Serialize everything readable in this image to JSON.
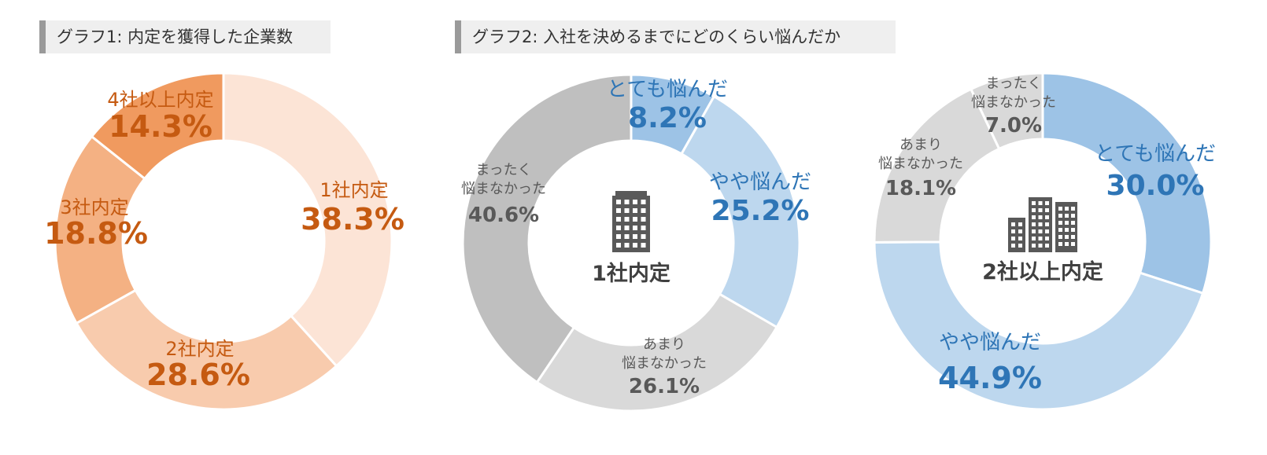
{
  "titles": {
    "graph1": "グラフ1: 内定を獲得した企業数",
    "graph2": "グラフ2: 入社を決めるまでにどのくらい悩んだか"
  },
  "chart_data": [
    {
      "type": "pie",
      "title": "グラフ1: 内定を獲得した企業数",
      "center_label": "",
      "series": [
        {
          "name": "1社内定",
          "value": 38.3,
          "label": "38.3%",
          "color": "#fce4d6"
        },
        {
          "name": "2社内定",
          "value": 28.6,
          "label": "28.6%",
          "color": "#f8cbad"
        },
        {
          "name": "3社内定",
          "value": 18.8,
          "label": "18.8%",
          "color": "#f4b183"
        },
        {
          "name": "4社以上内定",
          "value": 14.3,
          "label": "14.3%",
          "color": "#f09a5f"
        }
      ],
      "label_color": "#c55a11"
    },
    {
      "type": "pie",
      "title": "グラフ2: 入社を決めるまでにどのくらい悩んだか",
      "center_label": "1社内定",
      "center_icon": "building-icon",
      "series": [
        {
          "name": "とても悩んだ",
          "value": 8.2,
          "label": "8.2%",
          "color": "#9dc3e6",
          "label_color": "#2e75b6"
        },
        {
          "name": "やや悩んだ",
          "value": 25.2,
          "label": "25.2%",
          "color": "#bdd7ee",
          "label_color": "#2e75b6"
        },
        {
          "name": "あまり悩まなかった",
          "name_lines": [
            "あまり",
            "悩まなかった"
          ],
          "value": 26.1,
          "label": "26.1%",
          "color": "#d9d9d9",
          "label_color": "#595959"
        },
        {
          "name": "まったく悩まなかった",
          "name_lines": [
            "まったく",
            "悩まなかった"
          ],
          "value": 40.6,
          "label": "40.6%",
          "color": "#bfbfbf",
          "label_color": "#595959"
        }
      ]
    },
    {
      "type": "pie",
      "title": "",
      "center_label": "2社以上内定",
      "center_icon": "buildings-icon",
      "series": [
        {
          "name": "とても悩んだ",
          "value": 30.0,
          "label": "30.0%",
          "color": "#9dc3e6",
          "label_color": "#2e75b6"
        },
        {
          "name": "やや悩んだ",
          "value": 44.9,
          "label": "44.9%",
          "color": "#bdd7ee",
          "label_color": "#2e75b6"
        },
        {
          "name": "あまり悩まなかった",
          "name_lines": [
            "あまり",
            "悩まなかった"
          ],
          "value": 18.1,
          "label": "18.1%",
          "color": "#d9d9d9",
          "label_color": "#595959"
        },
        {
          "name": "まったく悩まなかった",
          "name_lines": [
            "まったく",
            "悩まなかった"
          ],
          "value": 7.0,
          "label": "7.0%",
          "color": "#d9d9d9",
          "label_color": "#595959"
        }
      ]
    }
  ],
  "icon_color": "#595959",
  "center_label_color": "#404040"
}
